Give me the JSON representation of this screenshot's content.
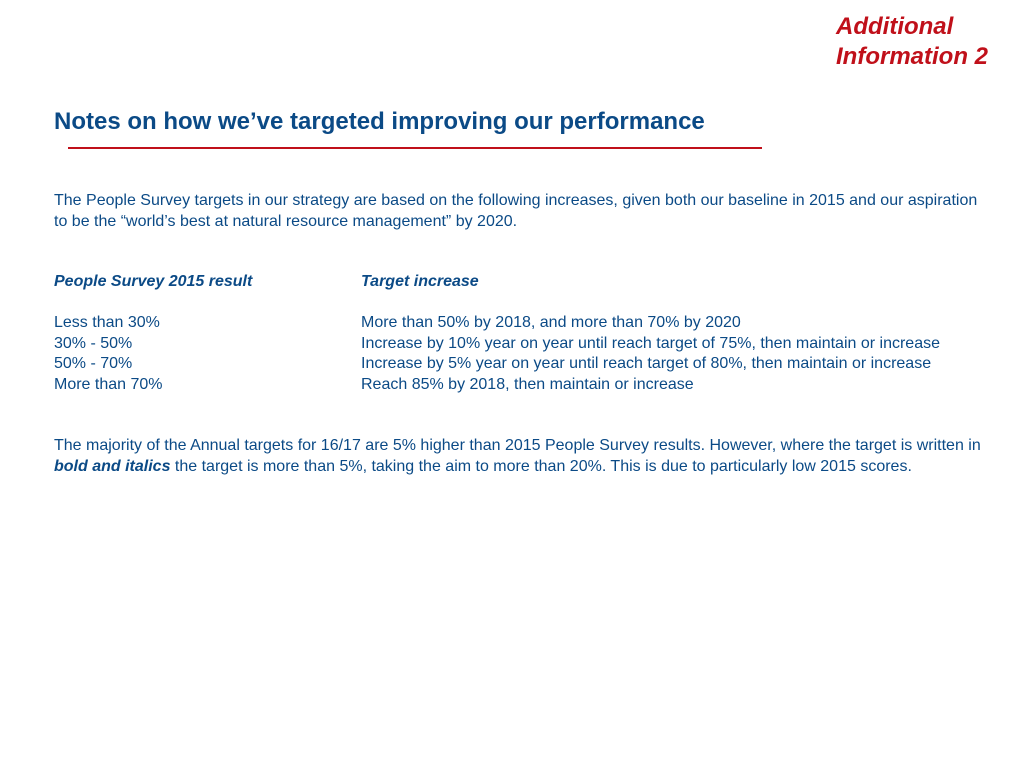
{
  "corner_label": {
    "line1": "Additional",
    "line2": "Information 2"
  },
  "title": "Notes on how we’ve targeted improving our performance",
  "intro": "The People Survey targets in our strategy are based on the following increases, given both our baseline in 2015 and our aspiration to be the “world’s best at natural resource management” by 2020.",
  "table": {
    "header": {
      "result": "People Survey 2015 result",
      "target": "Target increase"
    },
    "rows": [
      {
        "result": "Less than 30%",
        "target": "More than 50% by 2018, and more than 70% by 2020"
      },
      {
        "result": "30% - 50%",
        "target": "Increase by 10% year on year until reach target of 75%, then maintain or increase"
      },
      {
        "result": "50% - 70%",
        "target": "Increase by 5% year on year until reach target of 80%, then maintain or increase"
      },
      {
        "result": "More than 70%",
        "target": "Reach 85% by 2018, then maintain or increase"
      }
    ]
  },
  "closing": {
    "before": "The majority of the Annual targets for 16/17 are 5% higher than 2015 People Survey results. However, where the target is written in ",
    "emphasis": "bold and italics",
    "after": " the target is more than 5%, taking the aim to more than 20%. This is due to particularly low 2015 scores."
  },
  "colors": {
    "text_blue": "#0b4a86",
    "accent_red": "#c0101a"
  }
}
